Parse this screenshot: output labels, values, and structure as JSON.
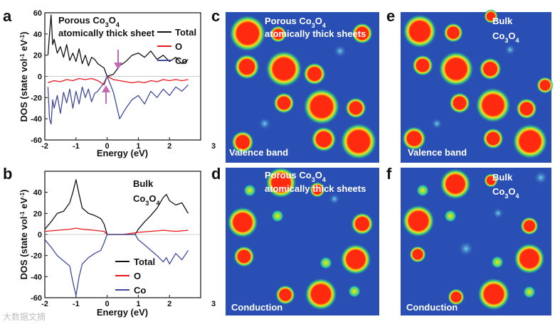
{
  "colors": {
    "total": "#111111",
    "o": "#e8161b",
    "co": "#3f4a9c",
    "map_bg": "#2a4fb4",
    "arrow": "#c06bb3"
  },
  "panels": {
    "a": {
      "letter": "a",
      "note_line1": "Porous Co",
      "note_sub1": "3",
      "note_mid": "O",
      "note_sub2": "4",
      "note_line2": "atomically thick sheet",
      "ylabel": "DOS (state vol",
      "ylabel_sup1": "-1",
      "ylabel_mid": " eV",
      "ylabel_sup2": "-1",
      "ylabel_end": ")",
      "xlabel": "Energy (eV)",
      "legend": [
        "Total",
        "O",
        "Co"
      ]
    },
    "b": {
      "letter": "b",
      "note_line1": "Bulk",
      "note_line2": "Co",
      "note_sub1": "3",
      "note_mid": "O",
      "note_sub2": "4",
      "ylabel": "DOS (state vol",
      "ylabel_sup1": "-1",
      "ylabel_mid": " eV",
      "ylabel_sup2": "-1",
      "ylabel_end": ")",
      "xlabel": "Energy (eV)",
      "legend": [
        "Total",
        "O",
        "Co"
      ]
    },
    "c": {
      "letter": "c",
      "line1": "Porous Co",
      "sub1": "3",
      "mid": "O",
      "sub2": "4",
      "line2": "atomically thick sheets",
      "bottom": "Valence band"
    },
    "d": {
      "letter": "d",
      "line1": "Porous Co",
      "sub1": "3",
      "mid": "O",
      "sub2": "4",
      "line2": "atomically thick sheets",
      "bottom": "Conduction"
    },
    "e": {
      "letter": "e",
      "line1": "Bulk",
      "line2": "Co",
      "sub1": "3",
      "mid": "O",
      "sub2": "4",
      "bottom": "Valence band"
    },
    "f": {
      "letter": "f",
      "line1": "Bulk",
      "line2": "Co",
      "sub1": "3",
      "mid": "O",
      "sub2": "4",
      "bottom": "Conduction"
    }
  },
  "watermark": "大数据文摘",
  "chart_data": [
    {
      "type": "line",
      "panel": "a",
      "xlabel": "Energy (eV)",
      "ylabel": "DOS (state vol-1 eV-1)",
      "xlim": [
        -2,
        3
      ],
      "ylim": [
        -60,
        60
      ],
      "xticks": [
        -2,
        -1,
        0,
        1,
        2,
        3
      ],
      "yticks": [
        -60,
        -40,
        -20,
        0,
        20,
        40,
        60
      ],
      "series": [
        {
          "name": "Total",
          "x": [
            -1.9,
            -1.85,
            -1.8,
            -1.75,
            -1.7,
            -1.6,
            -1.5,
            -1.4,
            -1.3,
            -1.2,
            -1.1,
            -1.0,
            -0.9,
            -0.8,
            -0.7,
            -0.6,
            -0.5,
            -0.4,
            -0.3,
            -0.2,
            -0.1,
            0.0,
            0.2,
            0.4,
            0.6,
            0.8,
            1.0,
            1.2,
            1.4,
            1.6,
            1.8,
            2.0,
            2.2,
            2.4,
            2.6
          ],
          "y": [
            20,
            40,
            58,
            30,
            35,
            22,
            28,
            18,
            30,
            15,
            22,
            14,
            26,
            12,
            20,
            10,
            18,
            16,
            12,
            10,
            8,
            0,
            2,
            10,
            14,
            20,
            22,
            18,
            24,
            16,
            20,
            14,
            18,
            12,
            16
          ]
        },
        {
          "name": "O",
          "x": [
            -1.9,
            -1.7,
            -1.5,
            -1.3,
            -1.1,
            -0.9,
            -0.7,
            -0.5,
            -0.3,
            -0.1,
            0.0,
            0.2,
            0.4,
            0.6,
            0.8,
            1.0,
            1.2,
            1.4,
            1.6,
            1.8,
            2.0,
            2.2,
            2.4,
            2.6
          ],
          "y": [
            -6,
            -4,
            -5,
            -3,
            -4,
            -2,
            -3,
            -2,
            -4,
            -8,
            0,
            -3,
            -4,
            -5,
            -6,
            -5,
            -6,
            -4,
            -5,
            -3,
            -4,
            -3,
            -4,
            -3
          ]
        },
        {
          "name": "Co",
          "x": [
            -1.9,
            -1.85,
            -1.8,
            -1.75,
            -1.7,
            -1.6,
            -1.5,
            -1.4,
            -1.3,
            -1.2,
            -1.1,
            -1.0,
            -0.9,
            -0.8,
            -0.7,
            -0.6,
            -0.5,
            -0.4,
            -0.3,
            -0.2,
            -0.1,
            0.0,
            0.2,
            0.4,
            0.6,
            0.8,
            1.0,
            1.2,
            1.4,
            1.6,
            1.8,
            2.0,
            2.2,
            2.4,
            2.6
          ],
          "y": [
            -10,
            -40,
            -45,
            -22,
            -30,
            -18,
            -35,
            -15,
            -25,
            -12,
            -30,
            -14,
            -26,
            -10,
            -20,
            -12,
            -24,
            -16,
            -14,
            -10,
            -6,
            0,
            -15,
            -40,
            -30,
            -22,
            -18,
            -26,
            -14,
            -20,
            -12,
            -18,
            -10,
            -14,
            -8
          ]
        }
      ]
    },
    {
      "type": "line",
      "panel": "b",
      "xlabel": "Energy (eV)",
      "ylabel": "DOS (state vol-1 eV-1)",
      "xlim": [
        -2,
        3
      ],
      "ylim": [
        -60,
        60
      ],
      "xticks": [
        -2,
        -1,
        0,
        1,
        2,
        3
      ],
      "yticks": [
        -60,
        -40,
        -20,
        0,
        20,
        40
      ],
      "series": [
        {
          "name": "Total",
          "x": [
            -2.0,
            -1.8,
            -1.6,
            -1.4,
            -1.2,
            -1.1,
            -1.0,
            -0.9,
            -0.8,
            -0.6,
            -0.4,
            -0.2,
            -0.1,
            0.0,
            0.5,
            0.9,
            1.0,
            1.2,
            1.4,
            1.6,
            1.8,
            1.9,
            2.0,
            2.2,
            2.4,
            2.6
          ],
          "y": [
            5,
            12,
            20,
            22,
            30,
            40,
            52,
            38,
            25,
            20,
            18,
            15,
            10,
            0,
            0,
            0,
            5,
            12,
            18,
            25,
            35,
            38,
            32,
            28,
            30,
            20
          ]
        },
        {
          "name": "O",
          "x": [
            -2.0,
            -1.6,
            -1.2,
            -1.0,
            -0.8,
            -0.4,
            -0.1,
            0.0,
            0.5,
            1.0,
            1.4,
            1.8,
            2.2,
            2.6
          ],
          "y": [
            3,
            4,
            5,
            6,
            5,
            4,
            3,
            0,
            0,
            2,
            3,
            4,
            3,
            4
          ]
        },
        {
          "name": "Co",
          "x": [
            -2.0,
            -1.8,
            -1.6,
            -1.4,
            -1.2,
            -1.1,
            -1.0,
            -0.9,
            -0.8,
            -0.6,
            -0.4,
            -0.2,
            -0.1,
            0.0,
            0.5,
            0.9,
            1.0,
            1.2,
            1.4,
            1.6,
            1.8,
            1.9,
            2.0,
            2.2,
            2.4,
            2.6
          ],
          "y": [
            -5,
            -12,
            -20,
            -25,
            -30,
            -45,
            -58,
            -40,
            -28,
            -22,
            -18,
            -15,
            -8,
            0,
            0,
            0,
            -5,
            -10,
            -15,
            -20,
            -26,
            -22,
            -28,
            -18,
            -24,
            -15
          ]
        }
      ]
    }
  ]
}
